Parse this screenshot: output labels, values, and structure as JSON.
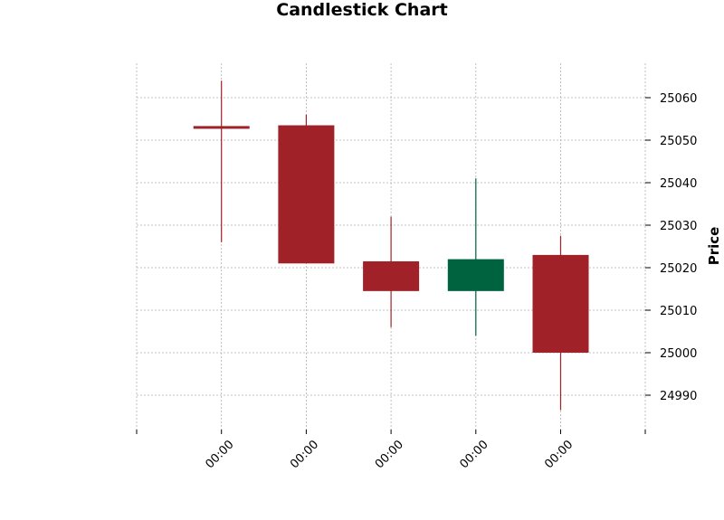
{
  "chart_data": {
    "type": "candlestick",
    "title": "Candlestick Chart",
    "xlabel": "",
    "ylabel": "Price",
    "x_tick_labels": [
      "00:00",
      "00:00",
      "00:00",
      "00:00",
      "00:00"
    ],
    "y_ticks": [
      24990,
      25000,
      25010,
      25020,
      25030,
      25040,
      25050,
      25060
    ],
    "ylim": [
      24982,
      25068
    ],
    "grid": true,
    "y_axis_side": "right",
    "colors": {
      "up": "#006340",
      "down": "#A02128"
    },
    "candles": [
      {
        "open": 25053,
        "high": 25064,
        "low": 25026,
        "close": 25053,
        "direction": "down"
      },
      {
        "open": 25053.5,
        "high": 25056,
        "low": 25021,
        "close": 25021,
        "direction": "down"
      },
      {
        "open": 25021.5,
        "high": 25032,
        "low": 25006,
        "close": 25014.5,
        "direction": "down"
      },
      {
        "open": 25014.5,
        "high": 25041,
        "low": 25004,
        "close": 25022,
        "direction": "up"
      },
      {
        "open": 25023,
        "high": 25027.5,
        "low": 24986.5,
        "close": 25000,
        "direction": "down"
      }
    ]
  }
}
